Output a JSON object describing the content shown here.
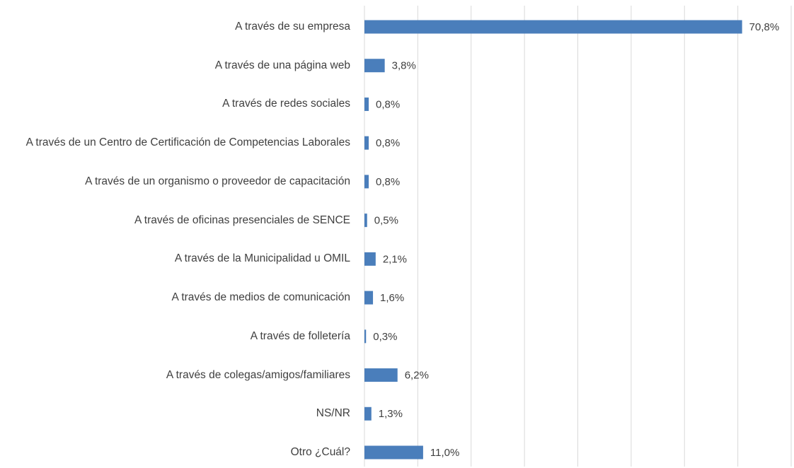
{
  "chart_data": {
    "type": "bar",
    "orientation": "horizontal",
    "categories": [
      "A través de su empresa",
      "A través de una página web",
      "A través de redes sociales",
      "A través de un Centro de Certificación de Competencias Laborales",
      "A través de un organismo o proveedor de capacitación",
      "A través de oficinas presenciales de SENCE",
      "A través de la Municipalidad u OMIL",
      "A través de medios de comunicación",
      "A través de folletería",
      "A través de colegas/amigos/familiares",
      "NS/NR",
      "Otro ¿Cuál?"
    ],
    "values": [
      70.8,
      3.8,
      0.8,
      0.8,
      0.8,
      0.5,
      2.1,
      1.6,
      0.3,
      6.2,
      1.3,
      11.0
    ],
    "value_labels": [
      "70,8%",
      "3,8%",
      "0,8%",
      "0,8%",
      "0,8%",
      "0,5%",
      "2,1%",
      "1,6%",
      "0,3%",
      "6,2%",
      "1,3%",
      "11,0%"
    ],
    "color": "#4a7ebb",
    "xlim": [
      0,
      80
    ],
    "xticks": [
      0,
      10,
      20,
      30,
      40,
      50,
      60,
      70,
      80
    ],
    "grid": true
  }
}
